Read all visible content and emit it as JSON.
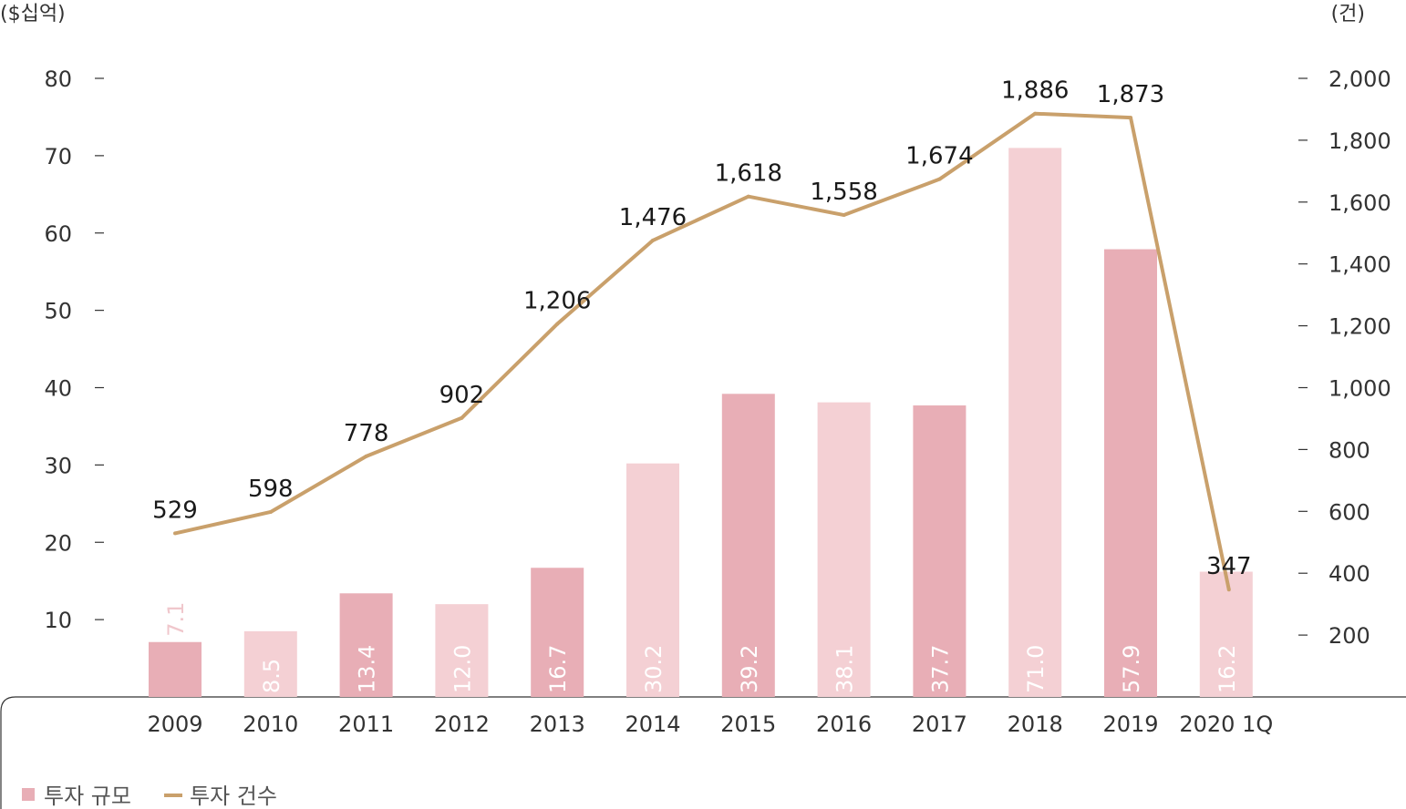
{
  "chart_data": {
    "type": "bar",
    "categories": [
      "2009",
      "2010",
      "2011",
      "2012",
      "2013",
      "2014",
      "2015",
      "2016",
      "2017",
      "2018",
      "2019",
      "2020 1Q"
    ],
    "series": [
      {
        "name": "투자 규모",
        "type": "bar",
        "axis": "left",
        "values": [
          7.1,
          8.5,
          13.4,
          12.0,
          16.7,
          30.2,
          39.2,
          38.1,
          37.7,
          71.0,
          57.9,
          16.2
        ],
        "labels": [
          "7.1",
          "8.5",
          "13.4",
          "12.0",
          "16.7",
          "30.2",
          "39.2",
          "38.1",
          "37.7",
          "71.0",
          "57.9",
          "16.2"
        ]
      },
      {
        "name": "투자 건수",
        "type": "line",
        "axis": "right",
        "values": [
          529,
          598,
          778,
          902,
          1206,
          1476,
          1618,
          1558,
          1674,
          1886,
          1873,
          347
        ],
        "labels": [
          "529",
          "598",
          "778",
          "902",
          "1,206",
          "1,476",
          "1,618",
          "1,558",
          "1,674",
          "1,886",
          "1,873",
          "347"
        ]
      }
    ],
    "y_left": {
      "unit": "($십억)",
      "ticks": [
        "10",
        "20",
        "30",
        "40",
        "50",
        "60",
        "70",
        "80"
      ],
      "ylim": [
        0,
        80
      ]
    },
    "y_right": {
      "unit": "(건)",
      "ticks": [
        "200",
        "400",
        "600",
        "800",
        "1,000",
        "1,200",
        "1,400",
        "1,600",
        "1,800",
        "2,000"
      ],
      "ylim": [
        0,
        2000
      ]
    },
    "legend": {
      "position": "bottom-left",
      "items": [
        {
          "label": "투자 규모",
          "marker": "square"
        },
        {
          "label": "투자 건수",
          "marker": "line"
        }
      ]
    },
    "colors": {
      "bar_dark": "#e8aeb6",
      "bar_light": "#f4d0d4",
      "line": "#c9a06b",
      "bar_label_dark": "#ffffff",
      "bar_label_light": "#f0c7cc",
      "axis": "#333333"
    }
  }
}
